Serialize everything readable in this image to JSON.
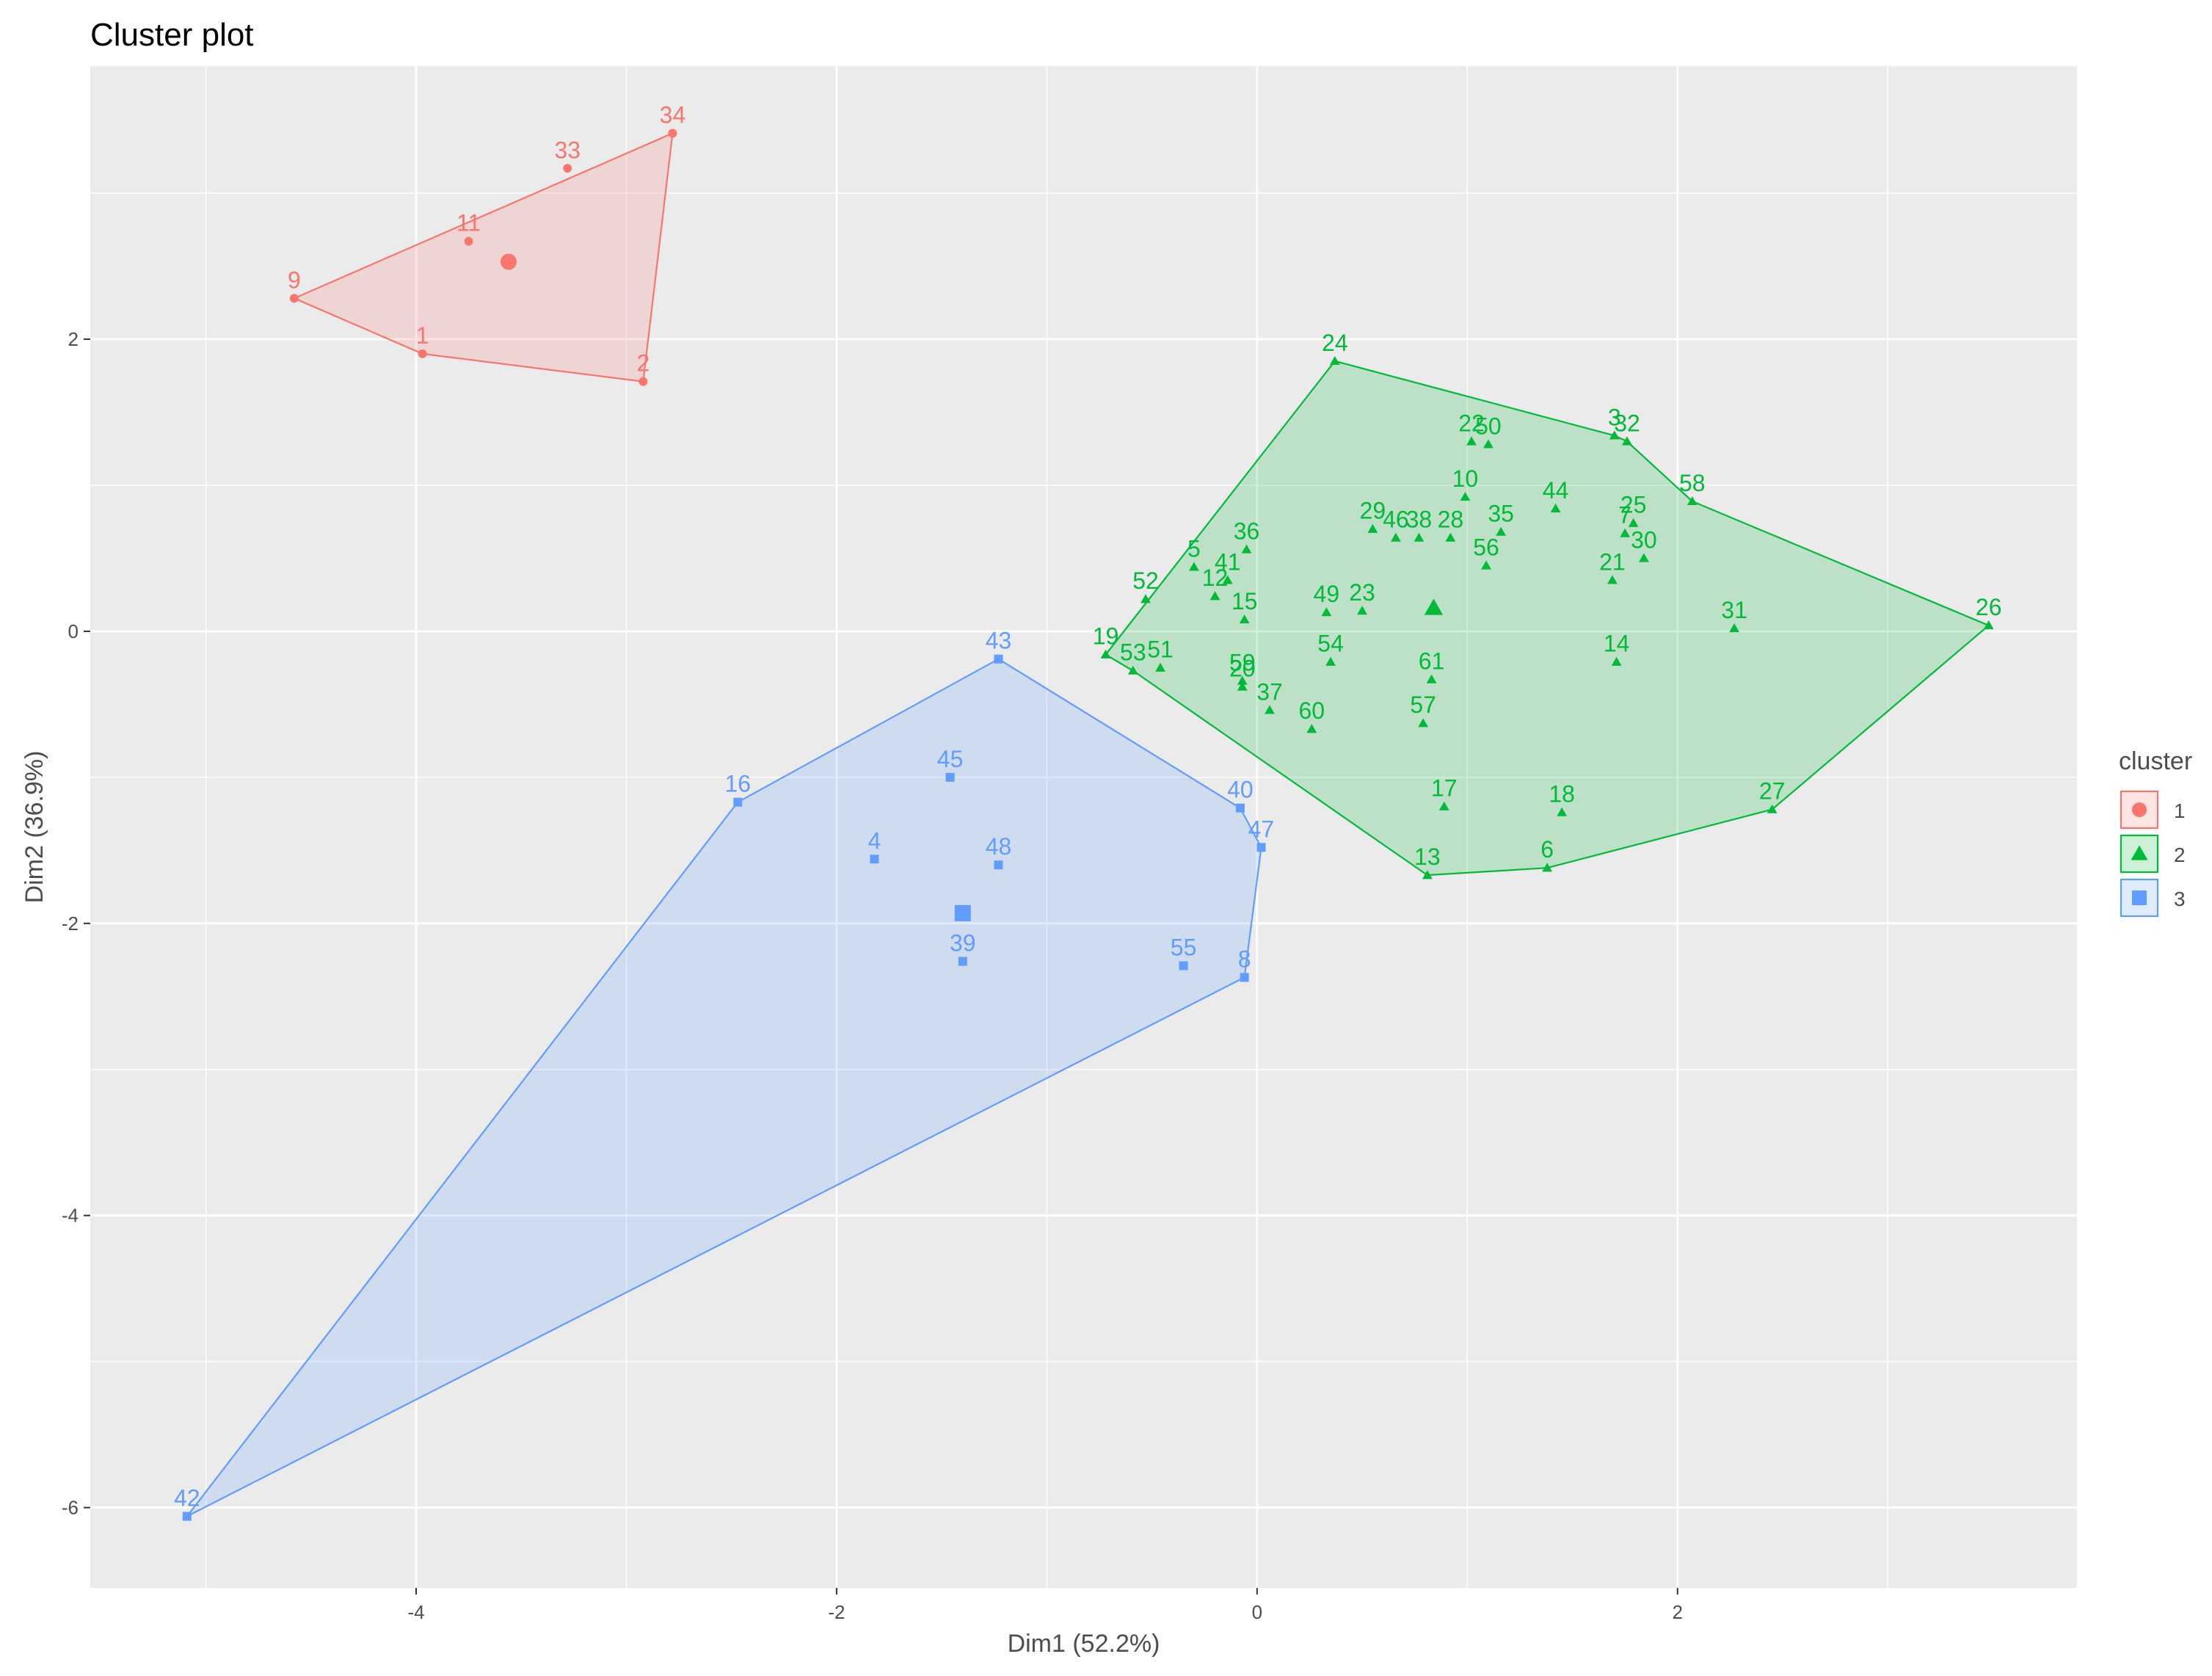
{
  "chart_data": {
    "type": "scatter",
    "title": "Cluster plot",
    "xlabel": "Dim1 (52.2%)",
    "ylabel": "Dim2 (36.9%)",
    "xlim": [
      -5.55,
      3.9
    ],
    "ylim": [
      -6.55,
      3.87
    ],
    "x_ticks": [
      -4,
      -2,
      0,
      2
    ],
    "y_ticks": [
      -6,
      -4,
      -2,
      0,
      2
    ],
    "x_tick_labels": [
      "-4",
      "-2",
      "0",
      "2"
    ],
    "y_tick_labels": [
      "-6",
      "-4",
      "-2",
      "0",
      "2"
    ],
    "grid": true,
    "legend": {
      "title": "cluster",
      "position": "right"
    },
    "colors": {
      "1": "#F8766D",
      "2": "#00BA38",
      "3": "#619CFF"
    },
    "clusters": [
      {
        "name": "1",
        "shape": "circle",
        "center": [
          -3.56,
          2.53
        ],
        "hull": [
          "9",
          "34",
          "2",
          "1"
        ],
        "points": [
          {
            "label": "34",
            "x": -2.78,
            "y": 3.41
          },
          {
            "label": "33",
            "x": -3.28,
            "y": 3.17
          },
          {
            "label": "11",
            "x": -3.75,
            "y": 2.67
          },
          {
            "label": "9",
            "x": -4.58,
            "y": 2.28
          },
          {
            "label": "1",
            "x": -3.97,
            "y": 1.9
          },
          {
            "label": "2",
            "x": -2.92,
            "y": 1.71
          }
        ]
      },
      {
        "name": "2",
        "shape": "triangle",
        "center": [
          0.84,
          0.16
        ],
        "hull": [
          "24",
          "3",
          "32",
          "58",
          "26",
          "27",
          "6",
          "13",
          "53",
          "19"
        ],
        "points": [
          {
            "label": "24",
            "x": 0.37,
            "y": 1.85
          },
          {
            "label": "3",
            "x": 1.7,
            "y": 1.34
          },
          {
            "label": "32",
            "x": 1.76,
            "y": 1.3
          },
          {
            "label": "22",
            "x": 1.02,
            "y": 1.3
          },
          {
            "label": "50",
            "x": 1.1,
            "y": 1.28
          },
          {
            "label": "58",
            "x": 2.07,
            "y": 0.89
          },
          {
            "label": "10",
            "x": 0.99,
            "y": 0.92
          },
          {
            "label": "44",
            "x": 1.42,
            "y": 0.84
          },
          {
            "label": "25",
            "x": 1.79,
            "y": 0.74
          },
          {
            "label": "7",
            "x": 1.75,
            "y": 0.67
          },
          {
            "label": "30",
            "x": 1.84,
            "y": 0.5
          },
          {
            "label": "29",
            "x": 0.55,
            "y": 0.7
          },
          {
            "label": "46",
            "x": 0.66,
            "y": 0.64
          },
          {
            "label": "38",
            "x": 0.77,
            "y": 0.64
          },
          {
            "label": "28",
            "x": 0.92,
            "y": 0.64
          },
          {
            "label": "35",
            "x": 1.16,
            "y": 0.68
          },
          {
            "label": "56",
            "x": 1.09,
            "y": 0.45
          },
          {
            "label": "36",
            "x": -0.05,
            "y": 0.56
          },
          {
            "label": "5",
            "x": -0.3,
            "y": 0.44
          },
          {
            "label": "41",
            "x": -0.14,
            "y": 0.35
          },
          {
            "label": "12",
            "x": -0.2,
            "y": 0.24
          },
          {
            "label": "52",
            "x": -0.53,
            "y": 0.22
          },
          {
            "label": "21",
            "x": 1.69,
            "y": 0.35
          },
          {
            "label": "15",
            "x": -0.06,
            "y": 0.08
          },
          {
            "label": "49",
            "x": 0.33,
            "y": 0.13
          },
          {
            "label": "23",
            "x": 0.5,
            "y": 0.14
          },
          {
            "label": "26",
            "x": 3.48,
            "y": 0.04
          },
          {
            "label": "31",
            "x": 2.27,
            "y": 0.02
          },
          {
            "label": "19",
            "x": -0.72,
            "y": -0.16
          },
          {
            "label": "53",
            "x": -0.59,
            "y": -0.27
          },
          {
            "label": "51",
            "x": -0.46,
            "y": -0.25
          },
          {
            "label": "59",
            "x": -0.07,
            "y": -0.34
          },
          {
            "label": "20",
            "x": -0.07,
            "y": -0.38
          },
          {
            "label": "54",
            "x": 0.35,
            "y": -0.21
          },
          {
            "label": "14",
            "x": 1.71,
            "y": -0.21
          },
          {
            "label": "61",
            "x": 0.83,
            "y": -0.33
          },
          {
            "label": "37",
            "x": 0.06,
            "y": -0.54
          },
          {
            "label": "60",
            "x": 0.26,
            "y": -0.67
          },
          {
            "label": "57",
            "x": 0.79,
            "y": -0.63
          },
          {
            "label": "17",
            "x": 0.89,
            "y": -1.2
          },
          {
            "label": "18",
            "x": 1.45,
            "y": -1.24
          },
          {
            "label": "27",
            "x": 2.45,
            "y": -1.22
          },
          {
            "label": "6",
            "x": 1.38,
            "y": -1.62
          },
          {
            "label": "13",
            "x": 0.81,
            "y": -1.67
          }
        ]
      },
      {
        "name": "3",
        "shape": "square",
        "center": [
          -1.4,
          -1.93
        ],
        "hull": [
          "43",
          "40",
          "47",
          "8",
          "42",
          "16"
        ],
        "points": [
          {
            "label": "43",
            "x": -1.23,
            "y": -0.19
          },
          {
            "label": "45",
            "x": -1.46,
            "y": -1.0
          },
          {
            "label": "16",
            "x": -2.47,
            "y": -1.17
          },
          {
            "label": "40",
            "x": -0.08,
            "y": -1.21
          },
          {
            "label": "47",
            "x": 0.02,
            "y": -1.48
          },
          {
            "label": "4",
            "x": -1.82,
            "y": -1.56
          },
          {
            "label": "48",
            "x": -1.23,
            "y": -1.6
          },
          {
            "label": "39",
            "x": -1.4,
            "y": -2.26
          },
          {
            "label": "55",
            "x": -0.35,
            "y": -2.29
          },
          {
            "label": "8",
            "x": -0.06,
            "y": -2.37
          },
          {
            "label": "42",
            "x": -5.09,
            "y": -6.06
          }
        ]
      }
    ]
  }
}
